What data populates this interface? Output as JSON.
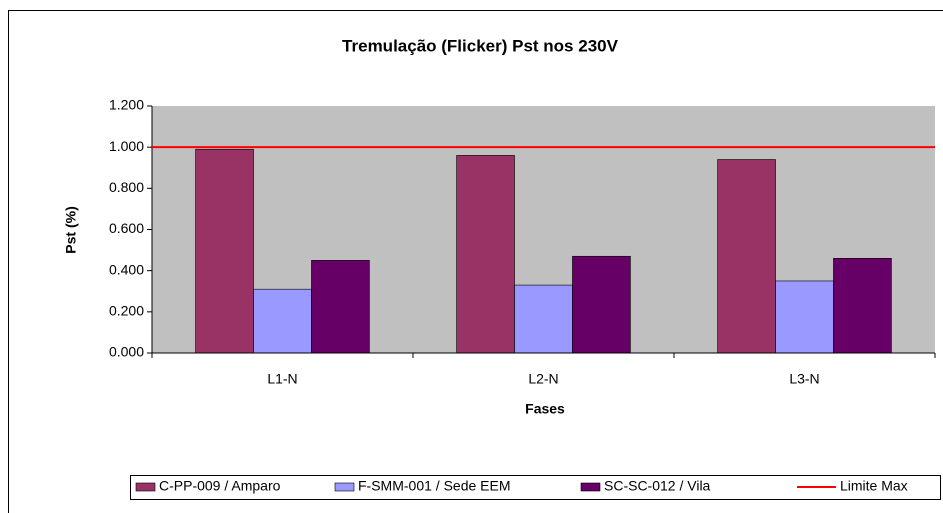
{
  "chart_data": {
    "type": "bar",
    "title": "Tremulação (Flicker) Pst nos 230V",
    "y_label": "Pst (%)",
    "x_label": "Fases",
    "categories": [
      "L1-N",
      "L2-N",
      "L3-N"
    ],
    "series": [
      {
        "name": "C-PP-009 / Amparo",
        "color": "#993366",
        "values": [
          0.99,
          0.96,
          0.94
        ]
      },
      {
        "name": "F-SMM-001 / Sede EEM",
        "color": "#9999ff",
        "values": [
          0.31,
          0.33,
          0.35
        ]
      },
      {
        "name": "SC-SC-012 / Vila",
        "color": "#660066",
        "values": [
          0.45,
          0.47,
          0.46
        ]
      },
      {
        "name": "Limite Max",
        "color": "#ff0000",
        "type": "line",
        "values": [
          1.0,
          1.0,
          1.0
        ]
      }
    ],
    "ylim": [
      0,
      1.2
    ],
    "yticks": [
      {
        "value": 0,
        "label": "0.000"
      },
      {
        "value": 0.2,
        "label": "0.200"
      },
      {
        "value": 0.4,
        "label": "0.400"
      },
      {
        "value": 0.6,
        "label": "0.600"
      },
      {
        "value": 0.8,
        "label": "0.800"
      },
      {
        "value": 1.0,
        "label": "1.000"
      },
      {
        "value": 1.2,
        "label": "1.200"
      }
    ],
    "plot_background": "#c0c0c0",
    "legend": "bottom"
  }
}
